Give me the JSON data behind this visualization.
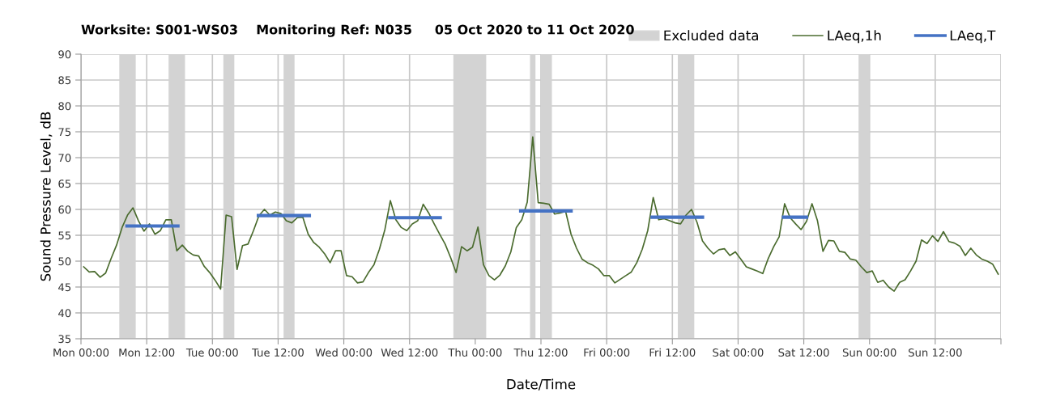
{
  "chart_data": {
    "type": "line",
    "title": "Worksite: S001-WS03    Monitoring Ref: N035     05 Oct 2020 to 11 Oct 2020",
    "xlabel": "Date/Time",
    "ylabel": "Sound Pressure Level, dB",
    "xlim": [
      "2020-10-05T00:00",
      "2020-10-12T00:00"
    ],
    "ylim": [
      35,
      90
    ],
    "xticks": [
      {
        "value": "2020-10-05T00:00",
        "label": "Mon 00:00"
      },
      {
        "value": "2020-10-05T12:00",
        "label": "Mon 12:00"
      },
      {
        "value": "2020-10-06T00:00",
        "label": "Tue 00:00"
      },
      {
        "value": "2020-10-06T12:00",
        "label": "Tue 12:00"
      },
      {
        "value": "2020-10-07T00:00",
        "label": "Wed 00:00"
      },
      {
        "value": "2020-10-07T12:00",
        "label": "Wed 12:00"
      },
      {
        "value": "2020-10-08T00:00",
        "label": "Thu 00:00"
      },
      {
        "value": "2020-10-08T12:00",
        "label": "Thu 12:00"
      },
      {
        "value": "2020-10-09T00:00",
        "label": "Fri 00:00"
      },
      {
        "value": "2020-10-09T12:00",
        "label": "Fri 12:00"
      },
      {
        "value": "2020-10-10T00:00",
        "label": "Sat 00:00"
      },
      {
        "value": "2020-10-10T12:00",
        "label": "Sat 12:00"
      },
      {
        "value": "2020-10-11T00:00",
        "label": "Sun 00:00"
      },
      {
        "value": "2020-10-11T12:00",
        "label": "Sun 12:00"
      },
      {
        "value": "2020-10-12T00:00",
        "label": null
      }
    ],
    "yticks": [
      35,
      40,
      45,
      50,
      55,
      60,
      65,
      70,
      75,
      80,
      85,
      90
    ],
    "grid": true,
    "legend": "top right",
    "marker": "none",
    "line_style": "solid",
    "bands": [
      {
        "axis": "x",
        "from": "2020-10-05T07:00",
        "to": "2020-10-05T10:00",
        "label": "Excluded data",
        "color": "#d3d3d3"
      },
      {
        "axis": "x",
        "from": "2020-10-05T16:00",
        "to": "2020-10-05T19:00",
        "color": "#d3d3d3"
      },
      {
        "axis": "x",
        "from": "2020-10-06T02:00",
        "to": "2020-10-06T04:00",
        "color": "#d3d3d3"
      },
      {
        "axis": "x",
        "from": "2020-10-06T13:00",
        "to": "2020-10-06T15:00",
        "color": "#d3d3d3"
      },
      {
        "axis": "x",
        "from": "2020-10-07T20:00",
        "to": "2020-10-08T02:00",
        "color": "#d3d3d3"
      },
      {
        "axis": "x",
        "from": "2020-10-08T10:00",
        "to": "2020-10-08T11:00",
        "color": "#d3d3d3"
      },
      {
        "axis": "x",
        "from": "2020-10-08T12:00",
        "to": "2020-10-08T14:00",
        "color": "#d3d3d3"
      },
      {
        "axis": "x",
        "from": "2020-10-09T13:00",
        "to": "2020-10-09T16:00",
        "color": "#d3d3d3"
      },
      {
        "axis": "x",
        "from": "2020-10-10T22:00",
        "to": "2020-10-11T00:00",
        "color": "#d3d3d3"
      }
    ],
    "series": [
      {
        "name": "LAeq,1h",
        "color": "#4a6b2e",
        "x": [
          "2020-10-05T00:30",
          "2020-10-05T01:30",
          "2020-10-05T02:30",
          "2020-10-05T03:30",
          "2020-10-05T04:30",
          "2020-10-05T05:30",
          "2020-10-05T06:30",
          "2020-10-05T07:30",
          "2020-10-05T08:30",
          "2020-10-05T09:30",
          "2020-10-05T10:30",
          "2020-10-05T11:30",
          "2020-10-05T12:30",
          "2020-10-05T13:30",
          "2020-10-05T14:30",
          "2020-10-05T15:30",
          "2020-10-05T16:30",
          "2020-10-05T17:30",
          "2020-10-05T18:30",
          "2020-10-05T19:30",
          "2020-10-05T20:30",
          "2020-10-05T21:30",
          "2020-10-05T22:30",
          "2020-10-05T23:30",
          "2020-10-06T00:30",
          "2020-10-06T01:30",
          "2020-10-06T02:30",
          "2020-10-06T03:30",
          "2020-10-06T04:30",
          "2020-10-06T05:30",
          "2020-10-06T06:30",
          "2020-10-06T07:30",
          "2020-10-06T08:30",
          "2020-10-06T09:30",
          "2020-10-06T10:30",
          "2020-10-06T11:30",
          "2020-10-06T12:30",
          "2020-10-06T13:30",
          "2020-10-06T14:30",
          "2020-10-06T15:30",
          "2020-10-06T16:30",
          "2020-10-06T17:30",
          "2020-10-06T18:30",
          "2020-10-06T19:30",
          "2020-10-06T20:30",
          "2020-10-06T21:30",
          "2020-10-06T22:30",
          "2020-10-06T23:30",
          "2020-10-07T00:30",
          "2020-10-07T01:30",
          "2020-10-07T02:30",
          "2020-10-07T03:30",
          "2020-10-07T04:30",
          "2020-10-07T05:30",
          "2020-10-07T06:30",
          "2020-10-07T07:30",
          "2020-10-07T08:30",
          "2020-10-07T09:30",
          "2020-10-07T10:30",
          "2020-10-07T11:30",
          "2020-10-07T12:30",
          "2020-10-07T13:30",
          "2020-10-07T14:30",
          "2020-10-07T15:30",
          "2020-10-07T16:30",
          "2020-10-07T17:30",
          "2020-10-07T18:30",
          "2020-10-07T19:30",
          "2020-10-07T20:30",
          "2020-10-07T21:30",
          "2020-10-07T22:30",
          "2020-10-07T23:30",
          "2020-10-08T00:30",
          "2020-10-08T01:30",
          "2020-10-08T02:30",
          "2020-10-08T03:30",
          "2020-10-08T04:30",
          "2020-10-08T05:30",
          "2020-10-08T06:30",
          "2020-10-08T07:30",
          "2020-10-08T08:30",
          "2020-10-08T09:30",
          "2020-10-08T10:30",
          "2020-10-08T11:30",
          "2020-10-08T12:30",
          "2020-10-08T13:30",
          "2020-10-08T14:30",
          "2020-10-08T15:30",
          "2020-10-08T16:30",
          "2020-10-08T17:30",
          "2020-10-08T18:30",
          "2020-10-08T19:30",
          "2020-10-08T20:30",
          "2020-10-08T21:30",
          "2020-10-08T22:30",
          "2020-10-08T23:30",
          "2020-10-09T00:30",
          "2020-10-09T01:30",
          "2020-10-09T02:30",
          "2020-10-09T03:30",
          "2020-10-09T04:30",
          "2020-10-09T05:30",
          "2020-10-09T06:30",
          "2020-10-09T07:30",
          "2020-10-09T08:30",
          "2020-10-09T09:30",
          "2020-10-09T10:30",
          "2020-10-09T11:30",
          "2020-10-09T12:30",
          "2020-10-09T13:30",
          "2020-10-09T14:30",
          "2020-10-09T15:30",
          "2020-10-09T16:30",
          "2020-10-09T17:30",
          "2020-10-09T18:30",
          "2020-10-09T19:30",
          "2020-10-09T20:30",
          "2020-10-09T21:30",
          "2020-10-09T22:30",
          "2020-10-09T23:30",
          "2020-10-10T00:30",
          "2020-10-10T01:30",
          "2020-10-10T02:30",
          "2020-10-10T03:30",
          "2020-10-10T04:30",
          "2020-10-10T05:30",
          "2020-10-10T06:30",
          "2020-10-10T07:30",
          "2020-10-10T08:30",
          "2020-10-10T09:30",
          "2020-10-10T10:30",
          "2020-10-10T11:30",
          "2020-10-10T12:30",
          "2020-10-10T13:30",
          "2020-10-10T14:30",
          "2020-10-10T15:30",
          "2020-10-10T16:30",
          "2020-10-10T17:30",
          "2020-10-10T18:30",
          "2020-10-10T19:30",
          "2020-10-10T20:30",
          "2020-10-10T21:30",
          "2020-10-10T22:30",
          "2020-10-10T23:30",
          "2020-10-11T00:30",
          "2020-10-11T01:30",
          "2020-10-11T02:30",
          "2020-10-11T03:30",
          "2020-10-11T04:30",
          "2020-10-11T05:30",
          "2020-10-11T06:30",
          "2020-10-11T07:30",
          "2020-10-11T08:30",
          "2020-10-11T09:30",
          "2020-10-11T10:30",
          "2020-10-11T11:30",
          "2020-10-11T12:30",
          "2020-10-11T13:30",
          "2020-10-11T14:30",
          "2020-10-11T15:30",
          "2020-10-11T16:30",
          "2020-10-11T17:30",
          "2020-10-11T18:30",
          "2020-10-11T19:30",
          "2020-10-11T20:30",
          "2020-10-11T21:30",
          "2020-10-11T22:30",
          "2020-10-11T23:30"
        ],
        "values": [
          48.9,
          47.9,
          48.0,
          46.9,
          47.7,
          50.5,
          53.1,
          56.5,
          58.9,
          60.3,
          57.8,
          55.8,
          57.2,
          55.2,
          55.9,
          58.0,
          58.0,
          52.0,
          53.1,
          51.9,
          51.2,
          51.0,
          49.0,
          47.8,
          46.3,
          44.6,
          58.9,
          58.6,
          48.4,
          53.0,
          53.3,
          55.9,
          58.8,
          60.0,
          58.9,
          59.5,
          59.2,
          57.8,
          57.4,
          58.4,
          58.5,
          55.2,
          53.6,
          52.7,
          51.4,
          49.7,
          52.0,
          52.0,
          47.2,
          47.0,
          45.8,
          46.0,
          47.8,
          49.3,
          52.3,
          56.1,
          61.7,
          58.0,
          56.5,
          55.9,
          57.2,
          57.8,
          61.0,
          59.3,
          57.2,
          55.2,
          53.3,
          50.7,
          47.8,
          52.8,
          52.0,
          52.7,
          56.6,
          49.3,
          47.2,
          46.4,
          47.3,
          49.1,
          51.8,
          56.5,
          58.0,
          61.4,
          74.0,
          61.3,
          61.2,
          61.0,
          59.1,
          59.3,
          59.6,
          55.2,
          52.5,
          50.4,
          49.7,
          49.2,
          48.5,
          47.2,
          47.2,
          45.8,
          46.5,
          47.2,
          47.9,
          49.7,
          52.3,
          55.9,
          62.3,
          58.0,
          58.2,
          57.8,
          57.4,
          57.2,
          58.9,
          60.0,
          57.5,
          53.9,
          52.5,
          51.4,
          52.2,
          52.4,
          51.1,
          51.8,
          50.4,
          48.9,
          48.5,
          48.1,
          47.6,
          50.5,
          52.8,
          54.7,
          61.1,
          58.4,
          57.2,
          56.1,
          57.7,
          61.1,
          57.8,
          51.9,
          54.0,
          53.9,
          51.9,
          51.7,
          50.4,
          50.2,
          48.9,
          47.8,
          48.1,
          45.9,
          46.3,
          45.0,
          44.2,
          45.9,
          46.4,
          48.1,
          50.0,
          54.1,
          53.4,
          54.9,
          53.8,
          55.7,
          53.8,
          53.5,
          52.9,
          51.1,
          52.5,
          51.2,
          50.4,
          50.0,
          49.4,
          47.5
        ]
      },
      {
        "name": "LAeq,T",
        "color": "#4472c4",
        "x": [
          "2020-10-05T08:24",
          "2020-10-05T17:42"
        ],
        "values": [
          56.8,
          56.8
        ]
      },
      {
        "color": "#4472c4",
        "x": [
          "2020-10-06T08:24",
          "2020-10-06T17:42"
        ],
        "values": [
          58.8,
          58.8
        ]
      },
      {
        "color": "#4472c4",
        "x": [
          "2020-10-07T08:24",
          "2020-10-07T17:36"
        ],
        "values": [
          58.4,
          58.4
        ]
      },
      {
        "color": "#4472c4",
        "x": [
          "2020-10-08T08:18",
          "2020-10-08T17:30"
        ],
        "values": [
          59.7,
          59.7
        ]
      },
      {
        "color": "#4472c4",
        "x": [
          "2020-10-09T08:18",
          "2020-10-09T17:30"
        ],
        "values": [
          58.5,
          58.5
        ]
      },
      {
        "color": "#4472c4",
        "x": [
          "2020-10-10T08:18",
          "2020-10-10T12:30"
        ],
        "values": [
          58.5,
          58.5
        ]
      }
    ]
  }
}
